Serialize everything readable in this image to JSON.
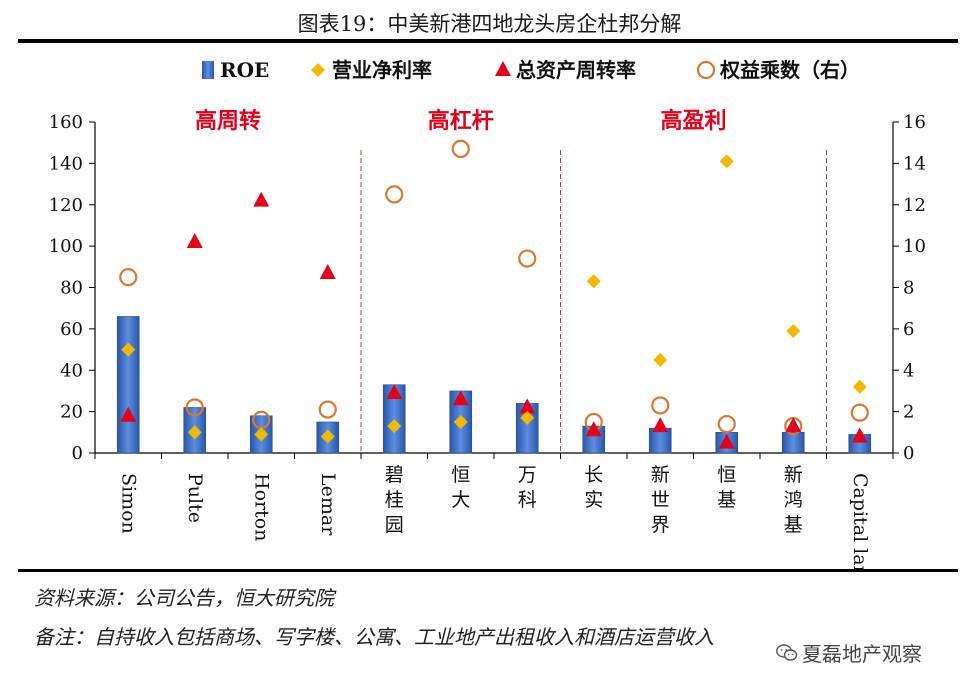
{
  "figure": {
    "title": "图表19：中美新港四地龙头房企杜邦分解",
    "source": "资料来源：公司公告，恒大研究院",
    "note": "备注：自持收入包括商场、写字楼、公寓、工业地产出租收入和酒店运营收入",
    "watermark": "夏磊地产观察"
  },
  "chart_data": {
    "type": "bar",
    "categories": [
      "Simon",
      "Pulte",
      "Horton",
      "Lemar",
      "碧\n桂\n园",
      "恒\n大",
      "万\n科",
      "长\n实",
      "新\n世\n界",
      "恒\n基",
      "新\n鸿\n基",
      "Capital land"
    ],
    "ylim_left": [
      0,
      160
    ],
    "ylim_right": [
      0,
      16
    ],
    "yticks_left": [
      0,
      20,
      40,
      60,
      80,
      100,
      120,
      140,
      160
    ],
    "yticks_right": [
      0,
      2,
      4,
      6,
      8,
      10,
      12,
      14,
      16
    ],
    "grid": false,
    "legend_position": "top",
    "groups": [
      {
        "label": "高周转",
        "start": 0,
        "end": 3
      },
      {
        "label": "高杠杆",
        "start": 4,
        "end": 6
      },
      {
        "label": "高盈利",
        "start": 7,
        "end": 10
      }
    ],
    "series": [
      {
        "name": "ROE",
        "kind": "bar",
        "axis": "left",
        "color": "#3d6fbe",
        "values": [
          66,
          22,
          18,
          15,
          33,
          30,
          24,
          13,
          12,
          10,
          10,
          9
        ]
      },
      {
        "name": "营业净利率",
        "kind": "diamond",
        "axis": "left",
        "color": "#f5b800",
        "values": [
          50,
          10,
          9,
          8,
          13,
          15,
          17,
          83,
          45,
          141,
          59,
          32
        ]
      },
      {
        "name": "总资产周转率",
        "kind": "triangle",
        "axis": "left",
        "color": "#e3001b",
        "values": [
          18,
          102,
          122,
          87,
          29,
          26,
          22,
          11,
          13,
          5,
          13,
          8
        ]
      },
      {
        "name": "权益乘数（右）",
        "kind": "circle",
        "axis": "right",
        "color": "#d9782f",
        "values": [
          8.5,
          2.2,
          1.6,
          2.1,
          12.5,
          14.7,
          9.4,
          1.5,
          2.3,
          1.4,
          1.3,
          1.95
        ]
      }
    ]
  },
  "colors": {
    "group_label": "#e3001b",
    "divider": "#c0392b"
  }
}
